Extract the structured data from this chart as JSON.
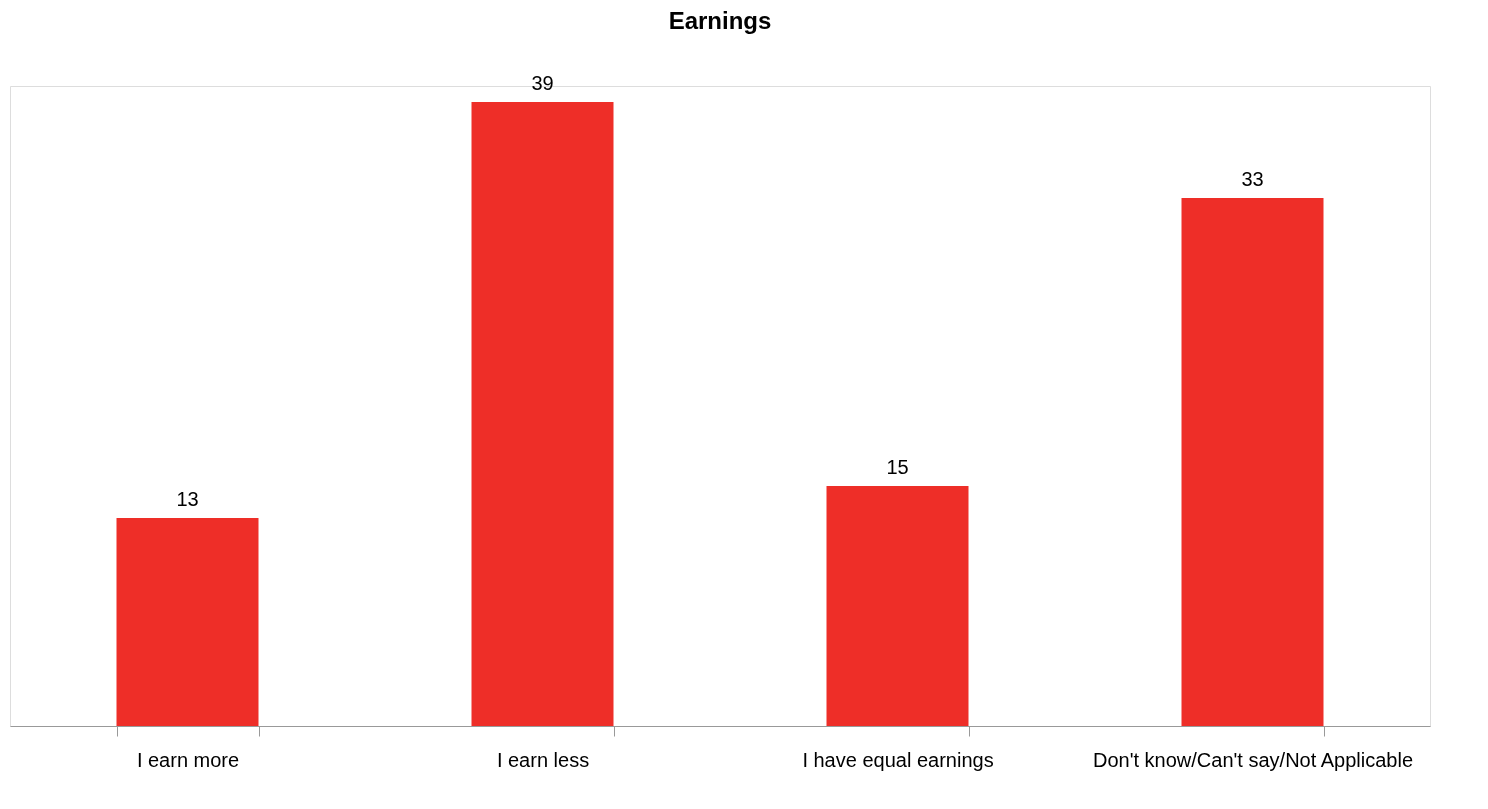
{
  "chart_data": {
    "type": "bar",
    "title": "Earnings",
    "categories": [
      "I earn more",
      "I earn less",
      "I have equal earnings",
      "Don't know/Can't say/Not Applicable"
    ],
    "values": [
      13,
      39,
      15,
      33
    ],
    "color": "#ee2e28",
    "data_labels": true,
    "grid": false
  }
}
